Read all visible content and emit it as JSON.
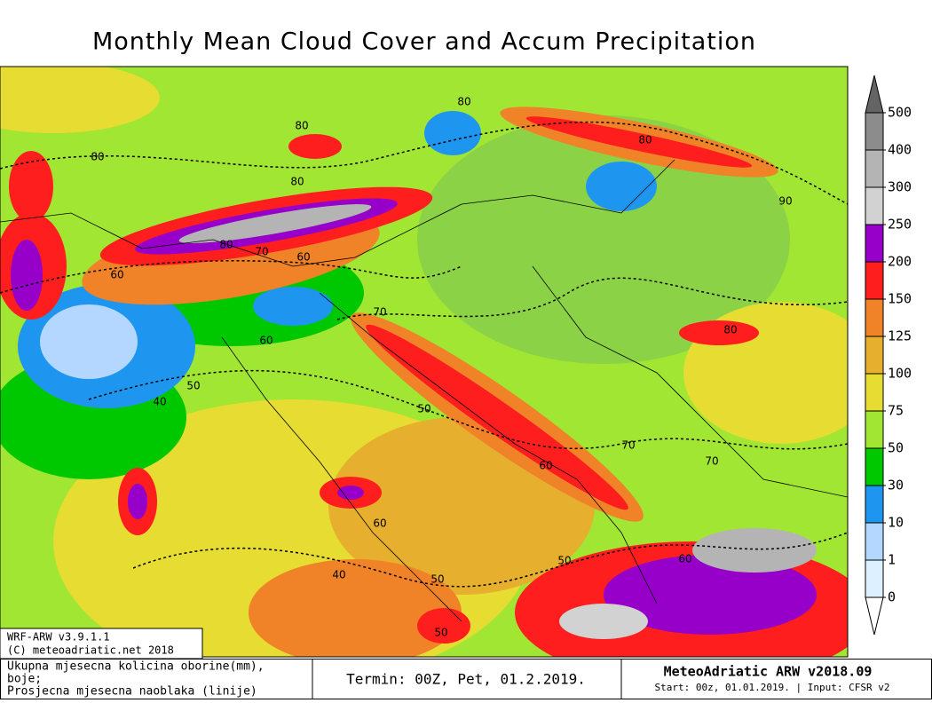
{
  "title": "Monthly Mean Cloud Cover and Accum Precipitation",
  "colorbar": {
    "levels": [
      0,
      1,
      10,
      30,
      50,
      75,
      100,
      125,
      150,
      200,
      250,
      300,
      400,
      500
    ],
    "colors": [
      "#ffffff",
      "#dcf0ff",
      "#b4d7ff",
      "#1e96f0",
      "#00c800",
      "#a0e632",
      "#e6dc32",
      "#e6af2d",
      "#f08228",
      "#ff1e1e",
      "#9600c8",
      "#d2d2d2",
      "#b4b4b4",
      "#8c8c8c",
      "#646464"
    ]
  },
  "contour_labels": [
    "80",
    "80",
    "80",
    "80",
    "80",
    "90",
    "80",
    "70",
    "60",
    "60",
    "70",
    "60",
    "80",
    "50",
    "40",
    "50",
    "70",
    "60",
    "70",
    "60",
    "40",
    "50",
    "50",
    "60",
    "50"
  ],
  "credit": {
    "model": "WRF-ARW v3.9.1.1",
    "copyright": "(C) meteoadriatic.net 2018"
  },
  "footer": {
    "legend_lines": [
      "Ukupna mjesecna kolicina oborine(mm),",
      "boje;",
      "Prosjecna mjesecna naoblaka (linije)"
    ],
    "termin": "Termin: 00Z, Pet, 01.2.2019.",
    "brand": "MeteoAdriatic ARW v2018.09",
    "run_info": "Start: 00z, 01.01.2019. | Input: CFSR v2"
  }
}
